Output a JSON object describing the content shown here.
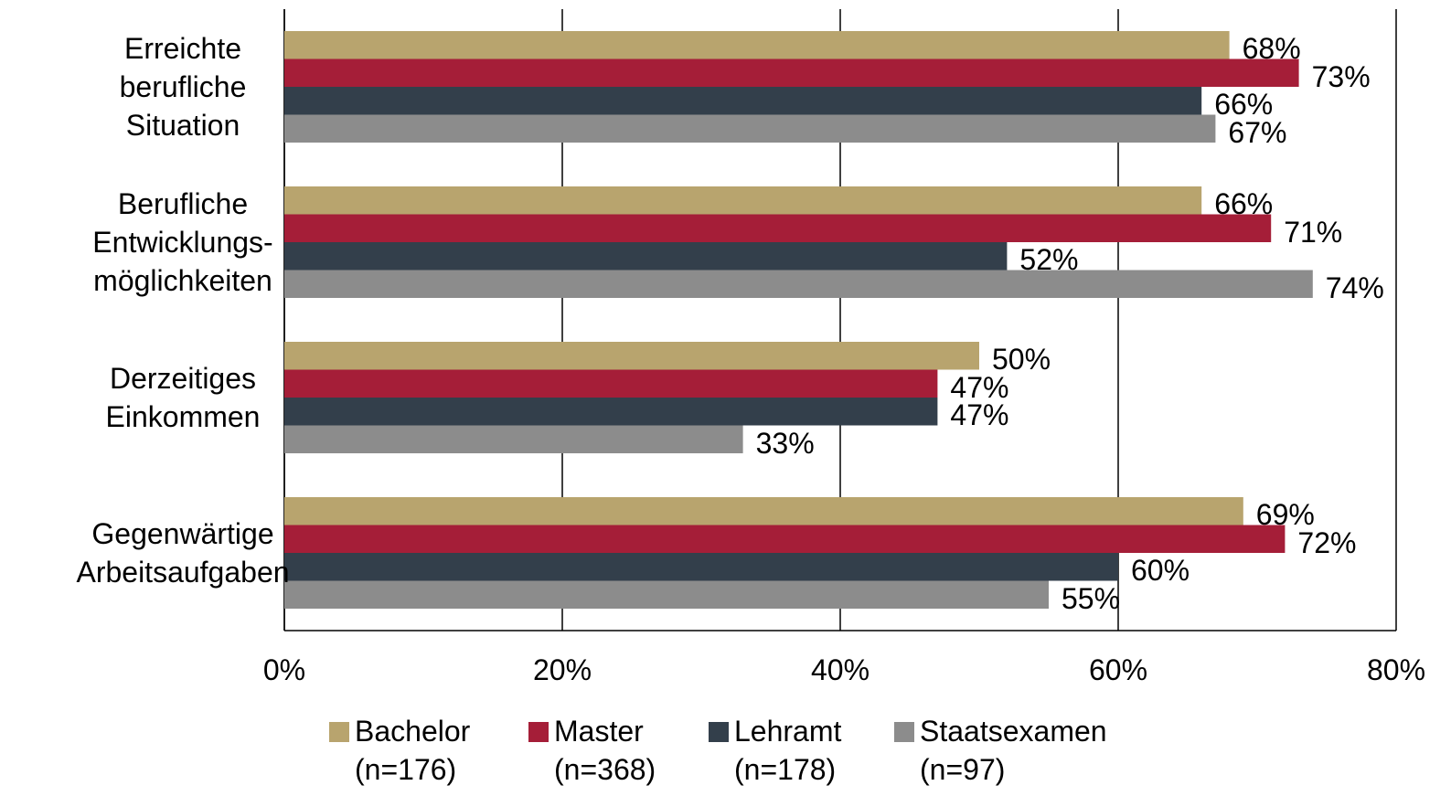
{
  "chart_data": {
    "type": "bar",
    "orientation": "horizontal",
    "categories": [
      "Erreichte\nberufliche\nSituation",
      "Berufliche\nEntwicklungs-\nmöglichkeiten",
      "Derzeitiges\nEinkommen",
      "Gegenwärtige\nArbeitsaufgaben"
    ],
    "series": [
      {
        "name": "Bachelor\n(n=176)",
        "color": "#b8a46e",
        "values": [
          68,
          66,
          50,
          69
        ],
        "value_labels": [
          "68%",
          "66%",
          "50%",
          "69%"
        ]
      },
      {
        "name": "Master\n(n=368)",
        "color": "#a51e38",
        "values": [
          73,
          71,
          47,
          72
        ],
        "value_labels": [
          "73%",
          "71%",
          "47%",
          "72%"
        ]
      },
      {
        "name": "Lehramt\n(n=178)",
        "color": "#333f4b",
        "values": [
          66,
          52,
          47,
          60
        ],
        "value_labels": [
          "66%",
          "52%",
          "47%",
          "60%"
        ]
      },
      {
        "name": "Staatsexamen\n(n=97)",
        "color": "#8c8c8c",
        "values": [
          67,
          74,
          33,
          55
        ],
        "value_labels": [
          "67%",
          "74%",
          "33%",
          "55%"
        ]
      }
    ],
    "xlim": [
      0,
      80
    ],
    "xticks": [
      {
        "value": 0,
        "label": "0%"
      },
      {
        "value": 20,
        "label": "20%"
      },
      {
        "value": 40,
        "label": "40%"
      },
      {
        "value": 60,
        "label": "60%"
      },
      {
        "value": 80,
        "label": "80%"
      }
    ],
    "grid": true,
    "legend": "bottom"
  }
}
